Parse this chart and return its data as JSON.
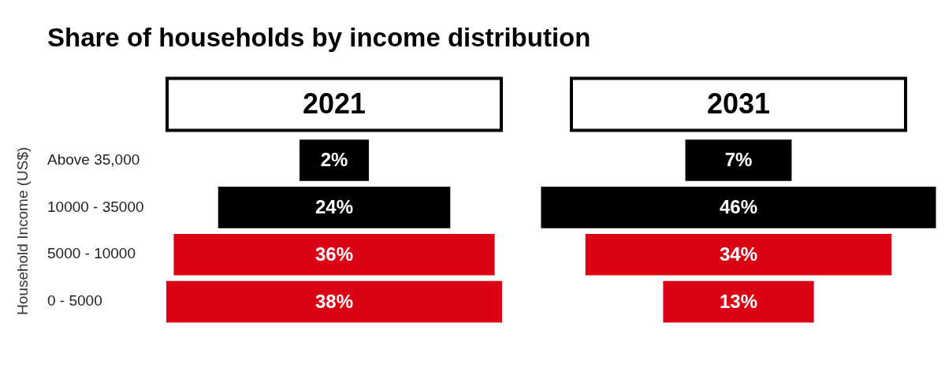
{
  "chart_data": {
    "type": "other",
    "title": "Share of households by income distribution",
    "ylabel": "Household Income (US$)",
    "categories": [
      "Above 35,000",
      "10000 - 35000",
      "5000 - 10000",
      "0 - 5000"
    ],
    "series": [
      {
        "name": "2021",
        "colors": [
          "#000000",
          "#000000",
          "#dc0014",
          "#dc0014"
        ],
        "values": [
          2,
          24,
          36,
          38
        ],
        "value_labels": [
          "2%",
          "24%",
          "36%",
          "38%"
        ]
      },
      {
        "name": "2031",
        "colors": [
          "#000000",
          "#000000",
          "#dc0014",
          "#dc0014"
        ],
        "values": [
          7,
          46,
          34,
          13
        ],
        "value_labels": [
          "7%",
          "46%",
          "34%",
          "13%"
        ]
      }
    ]
  }
}
